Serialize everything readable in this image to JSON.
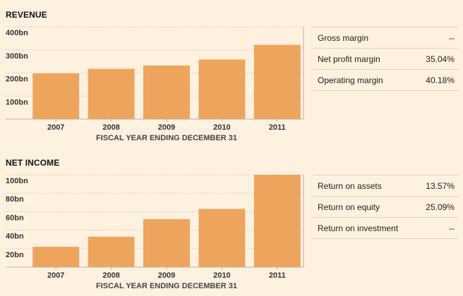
{
  "sections": [
    {
      "title": "REVENUE",
      "ratios": [
        {
          "label": "Gross margin",
          "value": "--"
        },
        {
          "label": "Net profit margin",
          "value": "35.04%"
        },
        {
          "label": "Operating margin",
          "value": "40.18%"
        }
      ]
    },
    {
      "title": "NET INCOME",
      "ratios": [
        {
          "label": "Return on assets",
          "value": "13.57%"
        },
        {
          "label": "Return on equity",
          "value": "25.09%"
        },
        {
          "label": "Return on investment",
          "value": "--"
        }
      ]
    }
  ],
  "colors": {
    "bar": "#eda55e",
    "grid": "#c8b9a5",
    "axis": "#bfb0a0",
    "background": "#fff1e0"
  },
  "chart_data": [
    {
      "type": "bar",
      "title": "REVENUE",
      "categories": [
        "2007",
        "2008",
        "2009",
        "2010",
        "2011"
      ],
      "values": [
        198,
        218,
        232,
        258,
        322
      ],
      "yticks": [
        100,
        200,
        300,
        400
      ],
      "ytick_labels": [
        "100bn",
        "200bn",
        "300bn",
        "400bn"
      ],
      "ylim": [
        0,
        400
      ],
      "xlabel": "FISCAL YEAR ENDING DECEMBER 31",
      "ylabel": "",
      "grid": true
    },
    {
      "type": "bar",
      "title": "NET INCOME",
      "categories": [
        "2007",
        "2008",
        "2009",
        "2010",
        "2011"
      ],
      "values": [
        22,
        33,
        52,
        63,
        100
      ],
      "yticks": [
        20,
        40,
        60,
        80,
        100
      ],
      "ytick_labels": [
        "20bn",
        "40bn",
        "60bn",
        "80bn",
        "100bn"
      ],
      "ylim": [
        0,
        100
      ],
      "xlabel": "FISCAL YEAR ENDING DECEMBER 31",
      "ylabel": "",
      "grid": true
    }
  ]
}
